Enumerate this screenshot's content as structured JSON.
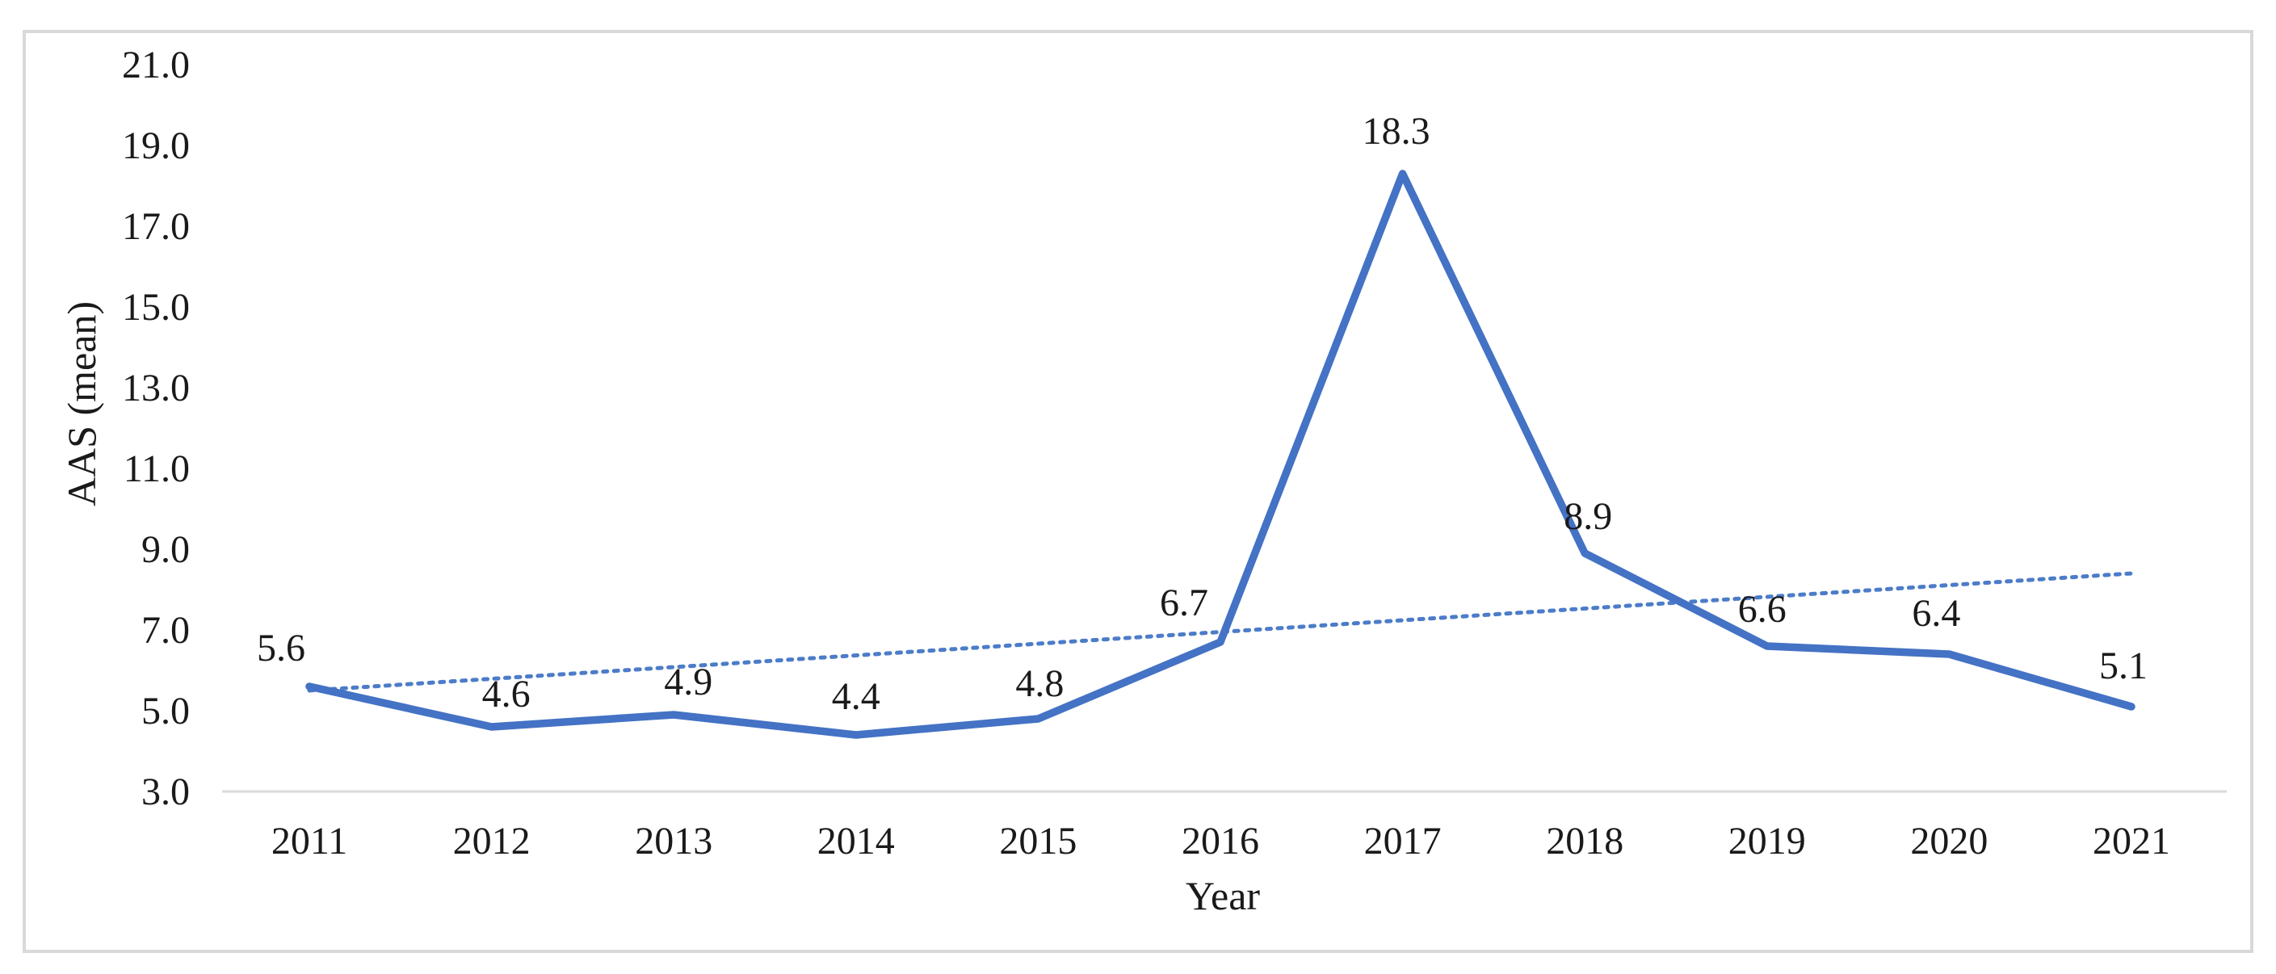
{
  "chart_data": {
    "type": "line",
    "title": "",
    "x": [
      "2011",
      "2012",
      "2013",
      "2014",
      "2015",
      "2016",
      "2017",
      "2018",
      "2019",
      "2020",
      "2021"
    ],
    "series": [
      {
        "name": "AAS (mean)",
        "values": [
          5.6,
          4.6,
          4.9,
          4.4,
          4.8,
          6.7,
          18.3,
          8.9,
          6.6,
          6.4,
          5.1
        ],
        "color": "#4472C4",
        "style": "solid"
      }
    ],
    "data_labels": [
      "5.6",
      "4.6",
      "4.9",
      "4.4",
      "4.8",
      "6.7",
      "18.3",
      "8.9",
      "6.6",
      "6.4",
      "5.1"
    ],
    "trendline": {
      "type": "linear",
      "style": "dotted",
      "color": "#4C7CC9",
      "start_value": 5.5,
      "end_value": 8.4
    },
    "xlabel": "Year",
    "ylabel": "AAS (mean)",
    "ylim": [
      3.0,
      21.0
    ],
    "ytick_step": 2.0,
    "yticks": [
      "3.0",
      "5.0",
      "7.0",
      "9.0",
      "11.0",
      "13.0",
      "15.0",
      "17.0",
      "19.0",
      "21.0"
    ],
    "grid": false,
    "legend": "none",
    "layout_hints": {
      "label_dx": [
        -35,
        18,
        18,
        0,
        2,
        -45,
        -8,
        4,
        -6,
        -16,
        -10
      ],
      "label_dy": [
        -32,
        -25,
        -25,
        -32,
        -28,
        -33,
        -37,
        -30,
        -30,
        -35,
        -35
      ]
    }
  },
  "styles": {
    "line_color": "#4472C4",
    "trend_color": "#4C7CC9",
    "frame_border_color": "#D9D9D9",
    "axis_line_color": "#D9D9D9",
    "text_color": "#1A1A1A",
    "background": "#FFFFFF"
  }
}
